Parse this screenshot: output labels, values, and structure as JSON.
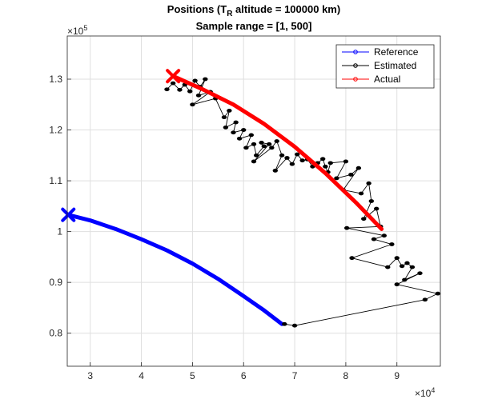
{
  "chart_data": {
    "type": "line",
    "title_line1_pre": "Positions (T",
    "title_line1_sub": "R",
    "title_line1_post": " altitude = 100000 km)",
    "title_line2": "Sample range = [1, 500]",
    "x_multiplier": "×10",
    "x_multiplier_exp": "4",
    "y_multiplier": "×10",
    "y_multiplier_exp": "5",
    "xlim": [
      2.55,
      9.85
    ],
    "ylim": [
      0.735,
      1.385
    ],
    "xticks": [
      3,
      4,
      5,
      6,
      7,
      8,
      9
    ],
    "yticks": [
      0.8,
      0.9,
      1.0,
      1.1,
      1.2,
      1.3
    ],
    "ytick_labels": [
      "0.8",
      "0.9",
      "1",
      "1.1",
      "1.2",
      "1.3"
    ],
    "grid": true,
    "legend_position": "top-right",
    "legend": [
      "Reference",
      "Estimated",
      "Actual"
    ],
    "series": [
      {
        "name": "Reference",
        "color": "#0000ff",
        "marker": "x-start",
        "points": [
          [
            2.57,
            1.033
          ],
          [
            3.0,
            1.022
          ],
          [
            3.5,
            1.005
          ],
          [
            4.0,
            0.985
          ],
          [
            4.5,
            0.963
          ],
          [
            5.0,
            0.937
          ],
          [
            5.5,
            0.907
          ],
          [
            6.0,
            0.873
          ],
          [
            6.4,
            0.845
          ],
          [
            6.75,
            0.818
          ]
        ]
      },
      {
        "name": "Estimated",
        "color": "#000000",
        "points": [
          [
            4.5,
            1.28
          ],
          [
            4.62,
            1.292
          ],
          [
            4.75,
            1.279
          ],
          [
            4.85,
            1.289
          ],
          [
            4.95,
            1.276
          ],
          [
            5.05,
            1.297
          ],
          [
            5.15,
            1.285
          ],
          [
            5.25,
            1.3
          ],
          [
            5.12,
            1.268
          ],
          [
            5.35,
            1.275
          ],
          [
            5.0,
            1.25
          ],
          [
            5.45,
            1.262
          ],
          [
            5.62,
            1.225
          ],
          [
            5.72,
            1.238
          ],
          [
            5.65,
            1.205
          ],
          [
            5.85,
            1.215
          ],
          [
            5.8,
            1.195
          ],
          [
            6.0,
            1.2
          ],
          [
            5.92,
            1.183
          ],
          [
            6.15,
            1.19
          ],
          [
            6.05,
            1.165
          ],
          [
            6.2,
            1.172
          ],
          [
            6.25,
            1.15
          ],
          [
            6.4,
            1.168
          ],
          [
            6.35,
            1.175
          ],
          [
            6.5,
            1.172
          ],
          [
            6.2,
            1.138
          ],
          [
            6.55,
            1.165
          ],
          [
            6.65,
            1.178
          ],
          [
            6.75,
            1.15
          ],
          [
            6.62,
            1.12
          ],
          [
            6.85,
            1.145
          ],
          [
            6.95,
            1.133
          ],
          [
            7.05,
            1.152
          ],
          [
            7.15,
            1.14
          ],
          [
            7.25,
            1.142
          ],
          [
            7.35,
            1.128
          ],
          [
            7.45,
            1.135
          ],
          [
            7.55,
            1.143
          ],
          [
            7.6,
            1.128
          ],
          [
            7.65,
            1.117
          ],
          [
            7.7,
            1.135
          ],
          [
            8.0,
            1.138
          ],
          [
            7.82,
            1.105
          ],
          [
            8.1,
            1.112
          ],
          [
            8.25,
            1.125
          ],
          [
            7.95,
            1.082
          ],
          [
            8.3,
            1.075
          ],
          [
            8.45,
            1.095
          ],
          [
            8.5,
            1.06
          ],
          [
            8.35,
            1.025
          ],
          [
            8.6,
            1.045
          ],
          [
            8.68,
            1.01
          ],
          [
            8.02,
            1.007
          ],
          [
            8.75,
            0.992
          ],
          [
            8.55,
            0.985
          ],
          [
            8.9,
            0.975
          ],
          [
            8.12,
            0.948
          ],
          [
            8.82,
            0.93
          ],
          [
            9.0,
            0.948
          ],
          [
            9.1,
            0.932
          ],
          [
            9.2,
            0.938
          ],
          [
            9.3,
            0.93
          ],
          [
            9.15,
            0.905
          ],
          [
            9.45,
            0.918
          ],
          [
            9.0,
            0.896
          ],
          [
            9.8,
            0.878
          ],
          [
            9.55,
            0.866
          ],
          [
            7.0,
            0.815
          ],
          [
            6.8,
            0.818
          ]
        ]
      },
      {
        "name": "Actual",
        "color": "#ff0000",
        "marker": "x-start",
        "points": [
          [
            4.62,
            1.306
          ],
          [
            5.2,
            1.28
          ],
          [
            5.8,
            1.25
          ],
          [
            6.4,
            1.212
          ],
          [
            7.0,
            1.167
          ],
          [
            7.6,
            1.115
          ],
          [
            8.2,
            1.057
          ],
          [
            8.7,
            1.005
          ]
        ]
      }
    ]
  }
}
